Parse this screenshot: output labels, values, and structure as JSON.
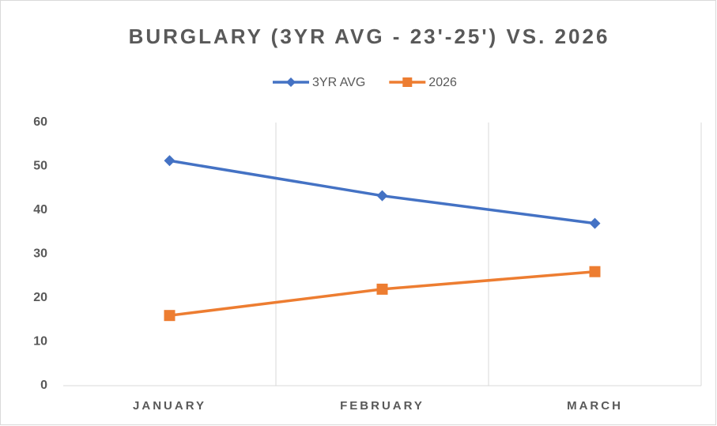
{
  "chart_data": {
    "type": "line",
    "title": "BURGLARY (3YR AVG - 23'-25') VS. 2026",
    "categories": [
      "JANUARY",
      "FEBRUARY",
      "MARCH"
    ],
    "series": [
      {
        "name": "3YR AVG",
        "color": "#4472c4",
        "values": [
          51.3,
          43.3,
          37
        ]
      },
      {
        "name": "2026",
        "color": "#ed7d31",
        "values": [
          16,
          22,
          26
        ]
      }
    ],
    "ylim": [
      0,
      60
    ],
    "yticks": [
      0,
      10,
      20,
      30,
      40,
      50,
      60
    ],
    "legend": "top"
  }
}
